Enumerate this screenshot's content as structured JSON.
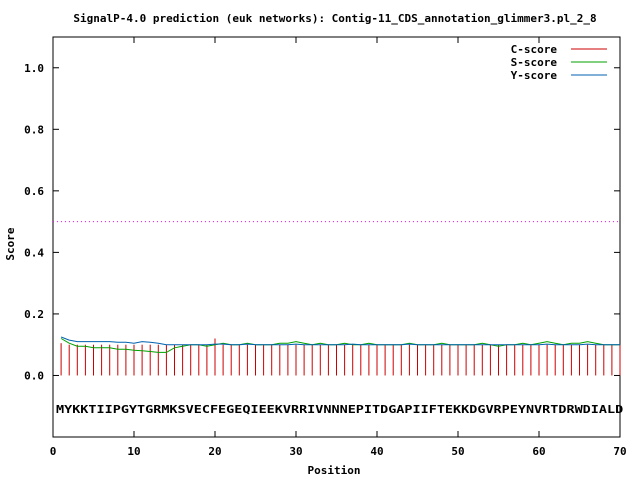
{
  "chart_data": {
    "type": "line",
    "title": "SignalP-4.0 prediction (euk networks): Contig-11_CDS_annotation_glimmer3.pl_2_8",
    "xlabel": "Position",
    "ylabel": "Score",
    "xlim": [
      0,
      70
    ],
    "ylim": [
      -0.2,
      1.1
    ],
    "x_ticks": [
      0,
      10,
      20,
      30,
      40,
      50,
      60,
      70
    ],
    "x_tick_labels": [
      "0",
      "10",
      "20",
      "30",
      "40",
      "50",
      "60",
      "70"
    ],
    "y_ticks": [
      0.0,
      0.2,
      0.4,
      0.6,
      0.8,
      1.0
    ],
    "y_tick_labels": [
      "0.0",
      "0.2",
      "0.4",
      "0.6",
      "0.8",
      "1.0"
    ],
    "grid": false,
    "legend_position": "top-right",
    "threshold": {
      "value": 0.5,
      "color": "#ff00ff",
      "style": "dotted"
    },
    "sequence": "MYKKTIIPGYTGRMKSVECFEGEQIEEKVRRIVNNNEPITDGAPIIFTEKKDGVRPEYNVRTDRWDIALD",
    "series": [
      {
        "name": "C-score",
        "color": "#cc0000",
        "style": "impulse",
        "values": [
          0.105,
          0.1,
          0.1,
          0.1,
          0.1,
          0.1,
          0.1,
          0.1,
          0.1,
          0.1,
          0.1,
          0.1,
          0.1,
          0.1,
          0.1,
          0.1,
          0.1,
          0.1,
          0.1,
          0.12,
          0.1,
          0.1,
          0.1,
          0.1,
          0.1,
          0.1,
          0.1,
          0.1,
          0.1,
          0.1,
          0.1,
          0.1,
          0.1,
          0.1,
          0.1,
          0.1,
          0.1,
          0.1,
          0.1,
          0.1,
          0.1,
          0.1,
          0.1,
          0.1,
          0.1,
          0.1,
          0.1,
          0.1,
          0.1,
          0.1,
          0.1,
          0.1,
          0.1,
          0.1,
          0.1,
          0.1,
          0.1,
          0.1,
          0.1,
          0.1,
          0.1,
          0.1,
          0.1,
          0.1,
          0.1,
          0.1,
          0.1,
          0.1,
          0.1,
          0.1
        ]
      },
      {
        "name": "S-score",
        "color": "#00a000",
        "style": "line",
        "values": [
          0.12,
          0.105,
          0.095,
          0.095,
          0.09,
          0.09,
          0.09,
          0.085,
          0.085,
          0.082,
          0.08,
          0.078,
          0.075,
          0.075,
          0.09,
          0.095,
          0.1,
          0.1,
          0.095,
          0.1,
          0.105,
          0.1,
          0.1,
          0.105,
          0.1,
          0.1,
          0.1,
          0.105,
          0.105,
          0.11,
          0.105,
          0.1,
          0.105,
          0.1,
          0.1,
          0.105,
          0.1,
          0.1,
          0.105,
          0.1,
          0.1,
          0.1,
          0.1,
          0.105,
          0.1,
          0.1,
          0.1,
          0.105,
          0.1,
          0.1,
          0.1,
          0.1,
          0.105,
          0.1,
          0.095,
          0.1,
          0.1,
          0.105,
          0.1,
          0.105,
          0.11,
          0.105,
          0.1,
          0.105,
          0.105,
          0.11,
          0.105,
          0.1,
          0.1,
          0.1
        ]
      },
      {
        "name": "Y-score",
        "color": "#0060b0",
        "style": "line",
        "values": [
          0.125,
          0.115,
          0.11,
          0.11,
          0.11,
          0.11,
          0.11,
          0.108,
          0.108,
          0.105,
          0.11,
          0.108,
          0.105,
          0.1,
          0.1,
          0.1,
          0.1,
          0.1,
          0.1,
          0.102,
          0.102,
          0.1,
          0.1,
          0.102,
          0.1,
          0.1,
          0.1,
          0.1,
          0.1,
          0.102,
          0.1,
          0.1,
          0.1,
          0.1,
          0.1,
          0.1,
          0.102,
          0.1,
          0.1,
          0.1,
          0.1,
          0.1,
          0.1,
          0.102,
          0.1,
          0.1,
          0.1,
          0.1,
          0.1,
          0.1,
          0.1,
          0.1,
          0.1,
          0.1,
          0.1,
          0.1,
          0.1,
          0.1,
          0.1,
          0.1,
          0.102,
          0.1,
          0.1,
          0.1,
          0.1,
          0.102,
          0.1,
          0.1,
          0.1,
          0.1
        ]
      }
    ]
  }
}
